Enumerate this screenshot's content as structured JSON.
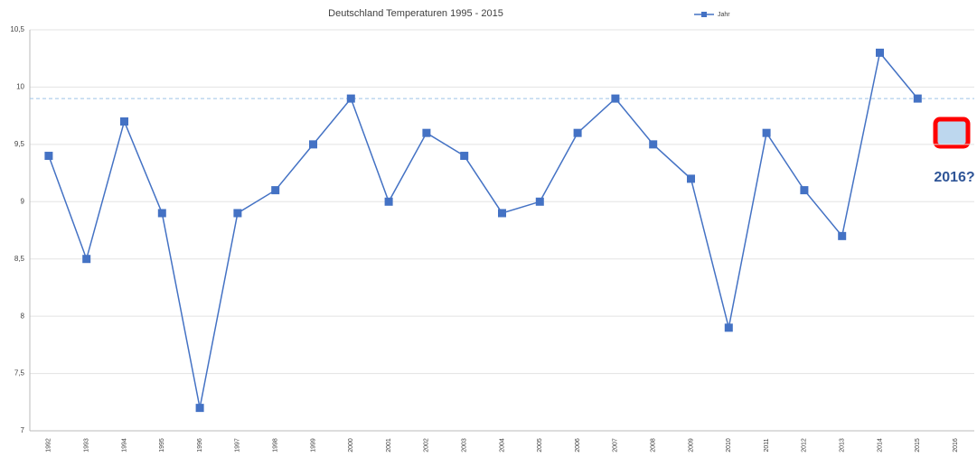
{
  "chart_data": {
    "type": "line",
    "title": "Deutschland Temperaturen 1995 - 2015",
    "categories": [
      "1992",
      "1993",
      "1994",
      "1995",
      "1996",
      "1997",
      "1998",
      "1999",
      "2000",
      "2001",
      "2002",
      "2003",
      "2004",
      "2005",
      "2006",
      "2007",
      "2008",
      "2009",
      "2010",
      "2011",
      "2012",
      "2013",
      "2014",
      "2015",
      "2016"
    ],
    "series": [
      {
        "name": "Jahr",
        "color": "#4472c4",
        "values": [
          9.4,
          8.5,
          9.7,
          8.9,
          7.2,
          8.9,
          9.1,
          9.5,
          9.9,
          9.0,
          9.6,
          9.4,
          8.9,
          9.0,
          9.6,
          9.9,
          9.5,
          9.2,
          7.9,
          9.6,
          9.1,
          8.7,
          10.3,
          9.9,
          null
        ]
      }
    ],
    "ylim": [
      7,
      10.5
    ],
    "yticks": [
      7,
      {
        "value": 7.5,
        "label": "7,5"
      },
      8,
      {
        "value": 8.5,
        "label": "8,5"
      },
      9,
      {
        "value": 9.5,
        "label": "9,5"
      },
      10,
      {
        "value": 10.5,
        "label": "10,5"
      }
    ],
    "grid": true,
    "reference_line": 9.9,
    "annotation": "2016?"
  }
}
